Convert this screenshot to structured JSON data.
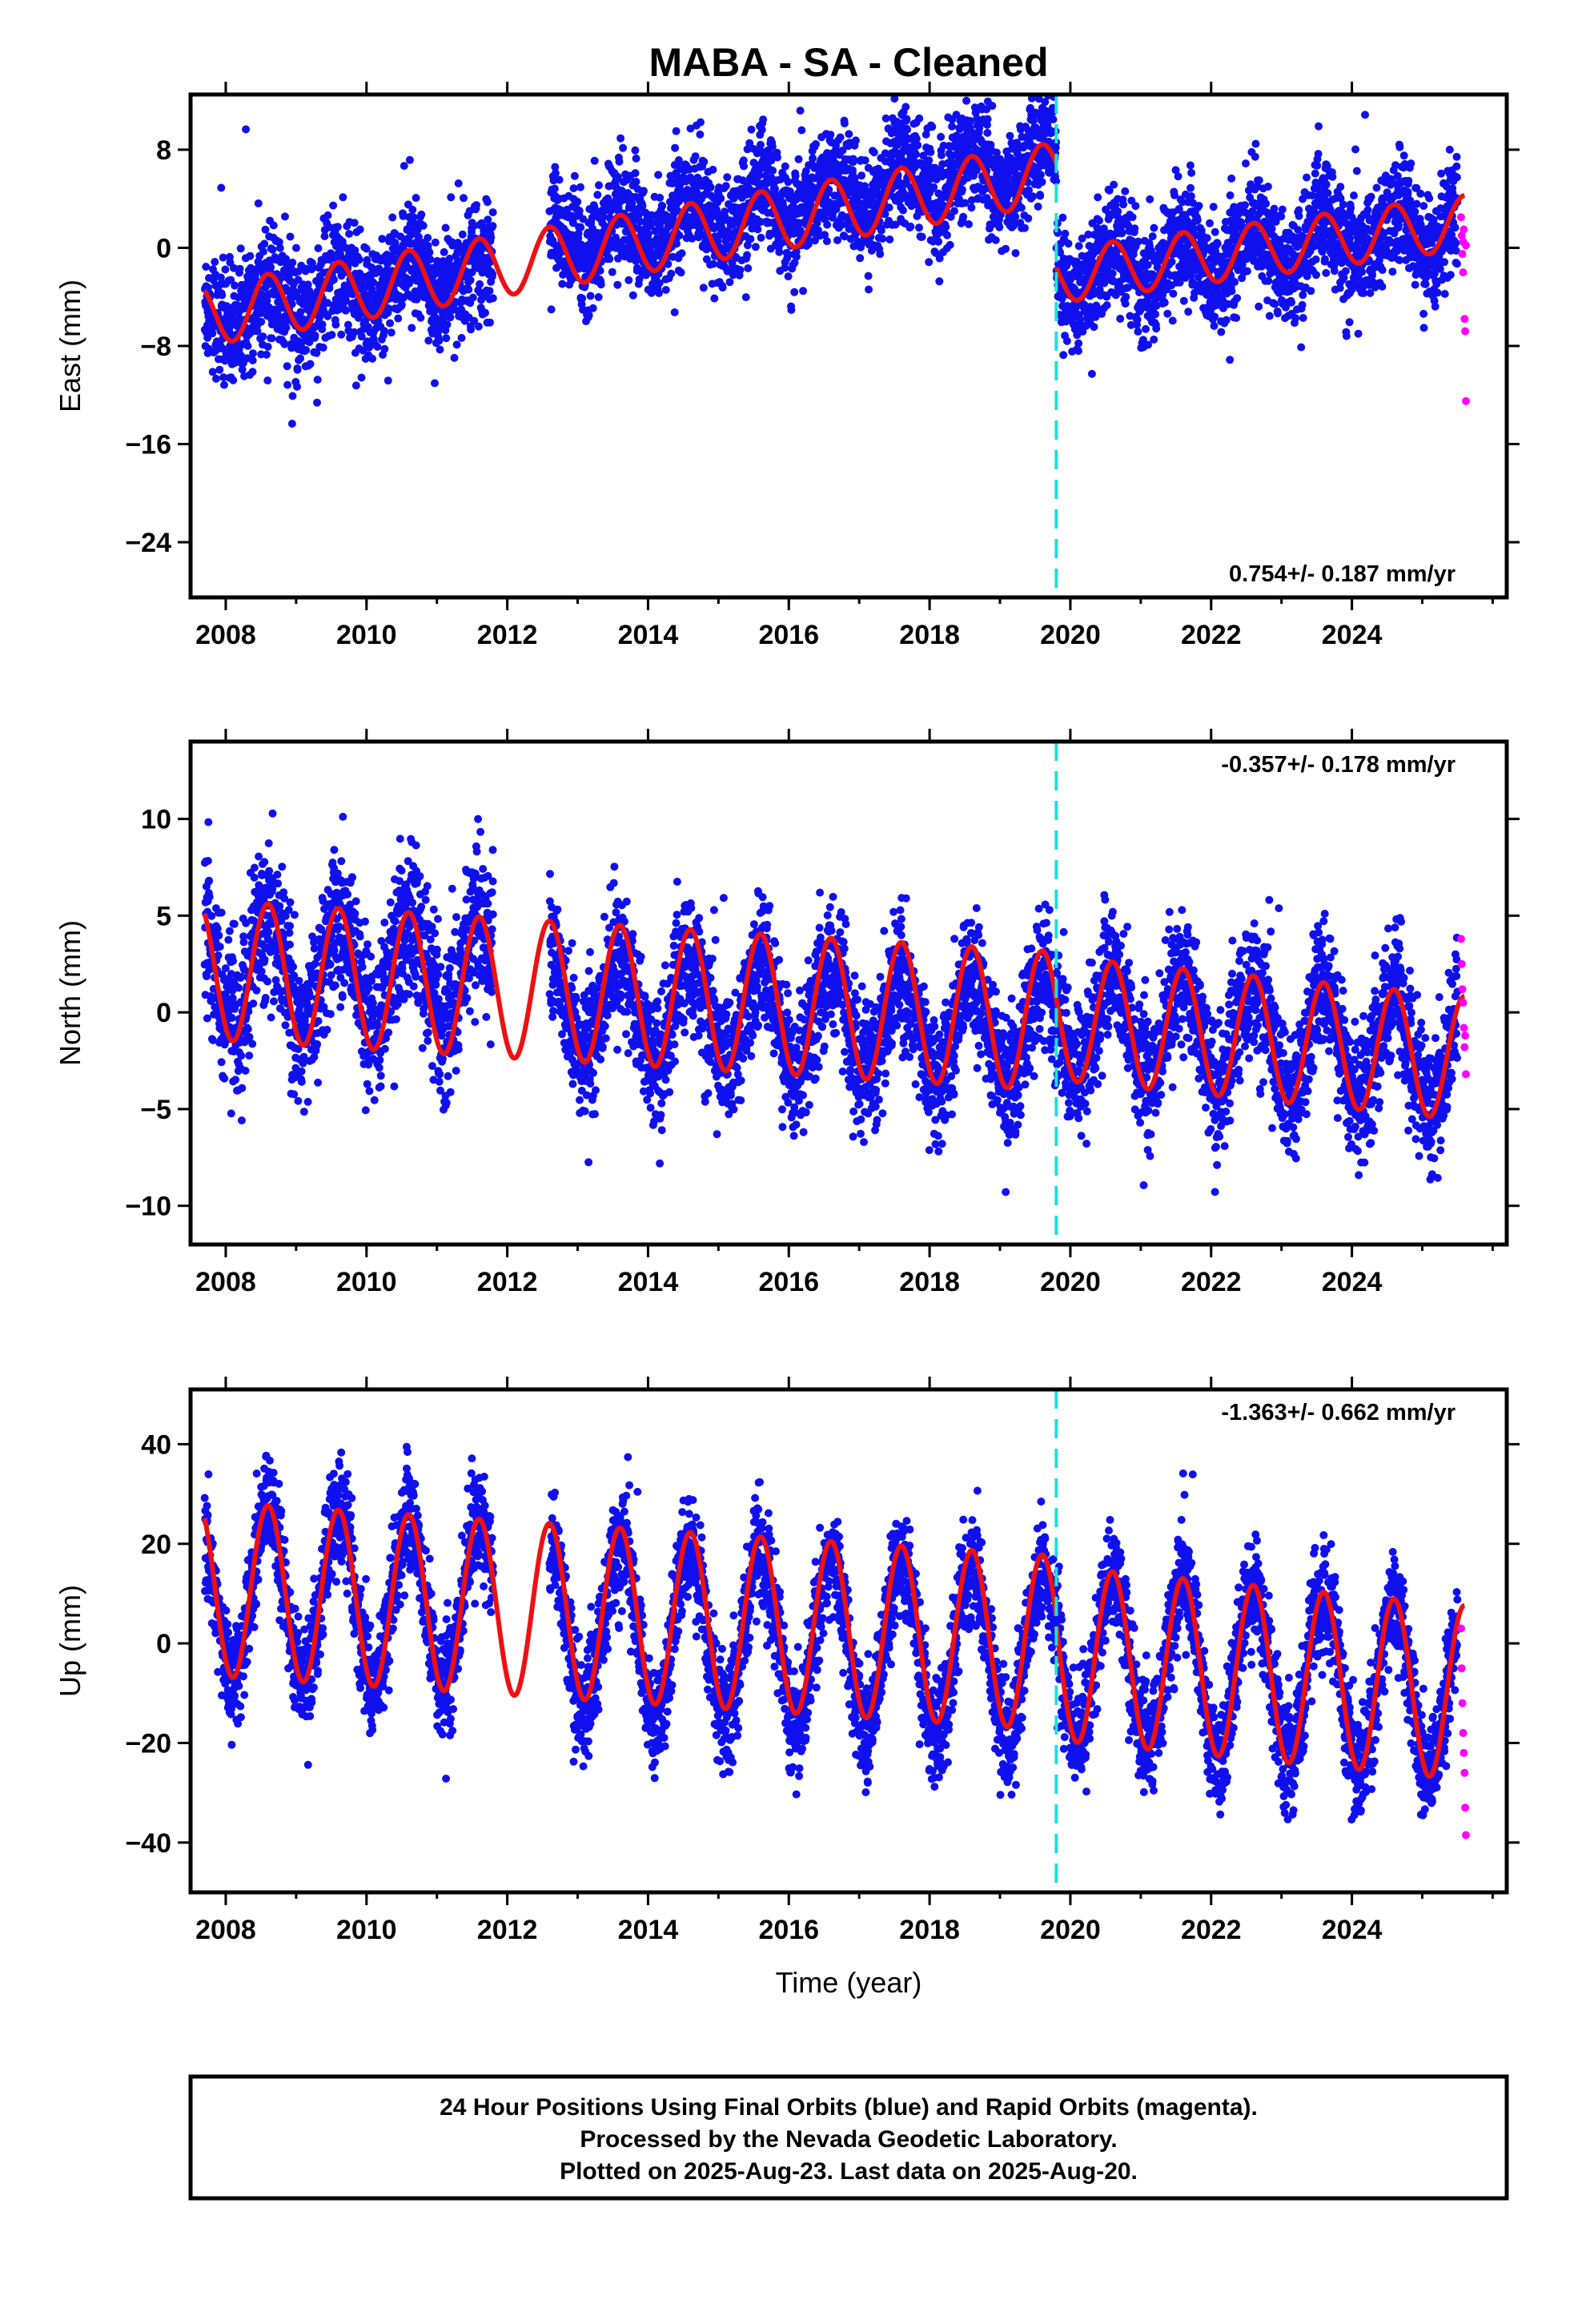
{
  "title": "MABA  - SA - Cleaned",
  "chart_data": [
    {
      "type": "scatter",
      "panel": "east",
      "ylabel": "East (mm)",
      "xlabel": "",
      "xlim": [
        2007.5,
        2026.2
      ],
      "ylim": [
        -28.5,
        12.5
      ],
      "yticks": [
        8,
        0,
        -8,
        -16,
        -24
      ],
      "xticks": [
        2008,
        2010,
        2012,
        2014,
        2016,
        2018,
        2020,
        2022,
        2024
      ],
      "rate_label": "0.754+/- 0.187 mm/yr",
      "rate_position": "bottom-right",
      "offset_line_x": 2019.8,
      "grid": false,
      "series": [
        {
          "name": "Final Orbits (blue)",
          "color": "#1010ee",
          "kind": "points",
          "segments": [
            [
              2007.7,
              2011.8,
              -5.5,
              0.96,
              1.5,
              2.3
            ],
            [
              2012.6,
              2019.8,
              0.4,
              0.96,
              1.8,
              2.3
            ],
            [
              2019.8,
              2025.5,
              -2.3,
              0.754,
              2.0,
              2.3
            ]
          ]
        },
        {
          "name": "Rapid Orbits (magenta)",
          "color": "#ff00ff",
          "kind": "points",
          "x": [
            2025.55,
            2025.56,
            2025.57,
            2025.58,
            2025.58,
            2025.59,
            2025.6,
            2025.61,
            2025.62,
            2025.62
          ],
          "y": [
            2.5,
            1.0,
            -0.5,
            0.5,
            -2.0,
            1.5,
            -5.8,
            -6.8,
            0.2,
            -12.5
          ]
        },
        {
          "name": "Model fit",
          "color": "#ee1111",
          "kind": "line",
          "segments": [
            [
              2007.7,
              2019.8,
              -5.5,
              0.96,
              2.5,
              2.7
            ],
            [
              2019.8,
              2025.6,
              -2.3,
              0.754,
              2.2,
              2.7
            ]
          ]
        }
      ]
    },
    {
      "type": "scatter",
      "panel": "north",
      "ylabel": "North (mm)",
      "xlabel": "",
      "xlim": [
        2007.5,
        2026.2
      ],
      "ylim": [
        -12,
        14
      ],
      "yticks": [
        10,
        5,
        0,
        -5,
        -10
      ],
      "xticks": [
        2008,
        2010,
        2012,
        2014,
        2016,
        2018,
        2020,
        2022,
        2024
      ],
      "rate_label": "-0.357+/- 0.178 mm/yr",
      "rate_position": "top-right",
      "offset_line_x": 2019.8,
      "grid": false,
      "series": [
        {
          "name": "Final Orbits (blue)",
          "color": "#1010ee",
          "kind": "points",
          "segments": [
            [
              2007.7,
              2011.8,
              2.2,
              0.0,
              2.8,
              2.0
            ],
            [
              2012.6,
              2019.8,
              0.5,
              -0.22,
              2.6,
              1.7
            ],
            [
              2019.8,
              2025.5,
              -0.2,
              -0.357,
              2.8,
              1.7
            ]
          ]
        },
        {
          "name": "Rapid Orbits (magenta)",
          "color": "#ff00ff",
          "kind": "points",
          "x": [
            2025.55,
            2025.56,
            2025.57,
            2025.58,
            2025.59,
            2025.6,
            2025.61,
            2025.62
          ],
          "y": [
            3.8,
            2.5,
            1.2,
            0.5,
            -0.8,
            -1.8,
            -1.2,
            -3.2
          ]
        },
        {
          "name": "Model fit",
          "color": "#ee1111",
          "kind": "line",
          "segments": [
            [
              2007.7,
              2019.8,
              2.2,
              -0.22,
              3.6,
              0
            ],
            [
              2019.8,
              2025.6,
              -0.3,
              -0.357,
              3.2,
              0
            ]
          ]
        }
      ]
    },
    {
      "type": "scatter",
      "panel": "up",
      "ylabel": "Up (mm)",
      "xlabel": "Time (year)",
      "xlim": [
        2007.5,
        2026.2
      ],
      "ylim": [
        -50,
        51
      ],
      "yticks": [
        40,
        20,
        0,
        -20,
        -40
      ],
      "xticks": [
        2008,
        2010,
        2012,
        2014,
        2016,
        2018,
        2020,
        2022,
        2024
      ],
      "rate_label": "-1.363+/- 0.662 mm/yr",
      "rate_position": "top-right",
      "offset_line_x": 2019.8,
      "grid": false,
      "series": [
        {
          "name": "Final Orbits (blue)",
          "color": "#1010ee",
          "kind": "points",
          "segments": [
            [
              2007.7,
              2011.8,
              11.0,
              -0.9,
              17.0,
              5.5
            ],
            [
              2012.6,
              2019.8,
              4.0,
              -0.9,
              17.0,
              5.5
            ],
            [
              2019.8,
              2025.5,
              -2.0,
              -1.363,
              17.0,
              5.5
            ]
          ]
        },
        {
          "name": "Rapid Orbits (magenta)",
          "color": "#ff00ff",
          "kind": "points",
          "x": [
            2025.55,
            2025.56,
            2025.57,
            2025.58,
            2025.59,
            2025.6,
            2025.61,
            2025.62
          ],
          "y": [
            3.0,
            -5.0,
            -12.0,
            -18.0,
            -22.0,
            -26.0,
            -33.0,
            -38.5
          ]
        },
        {
          "name": "Model fit",
          "color": "#ee1111",
          "kind": "line",
          "segments": [
            [
              2007.7,
              2019.8,
              11.0,
              -0.9,
              17.5,
              0
            ],
            [
              2019.8,
              2025.6,
              -2.0,
              -1.363,
              17.5,
              0
            ]
          ]
        }
      ]
    }
  ],
  "footer": {
    "line1": "24 Hour Positions Using Final Orbits (blue) and Rapid Orbits (magenta).",
    "line2": "Processed by the Nevada Geodetic Laboratory.",
    "line3": "Plotted on 2025-Aug-23. Last data on 2025-Aug-20."
  },
  "colors": {
    "data": "#1010ee",
    "rapid": "#ff00ff",
    "model": "#ee1111",
    "offset": "#22dddd",
    "frame": "#000000"
  }
}
